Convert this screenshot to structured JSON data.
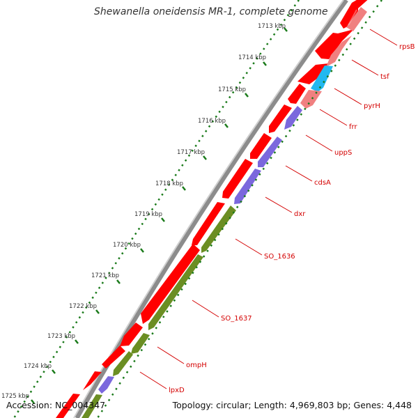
{
  "title": "Shewanella oneidensis MR-1, complete genome",
  "footer": {
    "accession": "Accession: NC_004347",
    "summary": "Topology: circular; Length: 4,969,803 bp; Genes: 4,448"
  },
  "scale_labels": [
    "1713 kbp",
    "1714 kbp",
    "1715 kbp",
    "1716 kbp",
    "1717 kbp",
    "1718 kbp",
    "1719 kbp",
    "1720 kbp",
    "1721 kbp",
    "1722 kbp",
    "1723 kbp",
    "1724 kbp",
    "1725 kbp"
  ],
  "gene_labels": [
    "rpsB",
    "tsf",
    "pyrH",
    "frr",
    "uppS",
    "cdsA",
    "dxr",
    "SO_1636",
    "SO_1637",
    "ompH",
    "lpxD"
  ],
  "colors": {
    "cds": "#ff0000",
    "ribosomal": "#f08080",
    "pyrimidine": "#22b8f0",
    "lipid": "#7b68dd",
    "membrane": "#6b8e23",
    "backbone": "#909090",
    "tick": "#1a7a1a",
    "label": "#d40000"
  }
}
